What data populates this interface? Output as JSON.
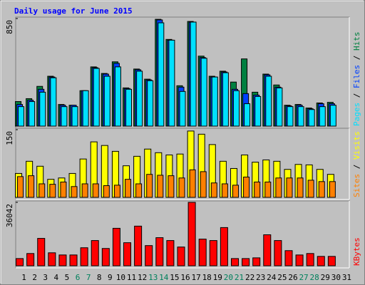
{
  "chart_data": [
    {
      "type": "bar",
      "title": "Daily usage for June 2015",
      "ylim": [
        0,
        850
      ],
      "yticks": [
        850
      ],
      "legend_separator": " / ",
      "series": [
        {
          "name": "Hits",
          "color": "#008040",
          "values": [
            194,
            217,
            314,
            394,
            171,
            165,
            280,
            468,
            416,
            508,
            302,
            451,
            371,
            844,
            685,
            319,
            827,
            553,
            394,
            434,
            348,
            531,
            268,
            411,
            325,
            165,
            171,
            143,
            183,
            188,
            0
          ]
        },
        {
          "name": "Files",
          "color": "#0040ff",
          "values": [
            171,
            205,
            291,
            388,
            165,
            165,
            280,
            462,
            411,
            496,
            297,
            445,
            365,
            839,
            679,
            308,
            822,
            542,
            388,
            428,
            291,
            257,
            245,
            405,
            308,
            160,
            165,
            137,
            177,
            177,
            0
          ]
        },
        {
          "name": "Pages",
          "color": "#00e0ff",
          "values": [
            154,
            194,
            268,
            382,
            154,
            154,
            280,
            456,
            394,
            468,
            291,
            434,
            359,
            816,
            679,
            274,
            822,
            536,
            388,
            422,
            280,
            177,
            234,
            394,
            302,
            154,
            154,
            131,
            154,
            165,
            0
          ]
        }
      ]
    },
    {
      "type": "bar",
      "ylim": [
        0,
        150
      ],
      "yticks": [
        150
      ],
      "legend_separator": " / ",
      "series": [
        {
          "name": "Visits",
          "color": "#ffff00",
          "values": [
            53,
            80,
            69,
            40,
            43,
            53,
            85,
            123,
            115,
            102,
            70,
            91,
            107,
            99,
            94,
            96,
            147,
            140,
            117,
            80,
            64,
            94,
            78,
            83,
            80,
            62,
            73,
            72,
            62,
            51,
            0
          ]
        },
        {
          "name": "Sites",
          "color": "#ff8000",
          "values": [
            46,
            48,
            30,
            29,
            34,
            24,
            30,
            30,
            26,
            27,
            40,
            30,
            51,
            49,
            48,
            43,
            61,
            57,
            32,
            30,
            27,
            45,
            34,
            34,
            43,
            43,
            43,
            38,
            35,
            35,
            0
          ]
        }
      ]
    },
    {
      "type": "bar",
      "ylim": [
        0,
        36042
      ],
      "yticks": [
        36042
      ],
      "categories": [
        "1",
        "2",
        "3",
        "4",
        "5",
        "6",
        "7",
        "8",
        "9",
        "10",
        "11",
        "12",
        "13",
        "14",
        "15",
        "16",
        "17",
        "18",
        "19",
        "20",
        "21",
        "22",
        "23",
        "24",
        "25",
        "26",
        "27",
        "28",
        "29",
        "30",
        "31"
      ],
      "label_colors": [
        "#000000",
        "#000000",
        "#000000",
        "#000000",
        "#000000",
        "#00805c",
        "#00805c",
        "#000000",
        "#000000",
        "#000000",
        "#000000",
        "#000000",
        "#00805c",
        "#00805c",
        "#000000",
        "#000000",
        "#000000",
        "#000000",
        "#000000",
        "#00805c",
        "#00805c",
        "#000000",
        "#000000",
        "#000000",
        "#000000",
        "#000000",
        "#00805c",
        "#00805c",
        "#000000",
        "#000000",
        "#000000"
      ],
      "series": [
        {
          "name": "KBytes",
          "color": "#ff0000",
          "values": [
            4096,
            6963,
            15565,
            7373,
            6144,
            6144,
            10240,
            14336,
            9830,
            21299,
            13107,
            22528,
            11469,
            15974,
            14336,
            10650,
            36042,
            15155,
            14336,
            21709,
            4096,
            4096,
            4506,
            17613,
            14336,
            8602,
            6144,
            6963,
            5325,
            5325,
            0
          ]
        }
      ]
    }
  ]
}
